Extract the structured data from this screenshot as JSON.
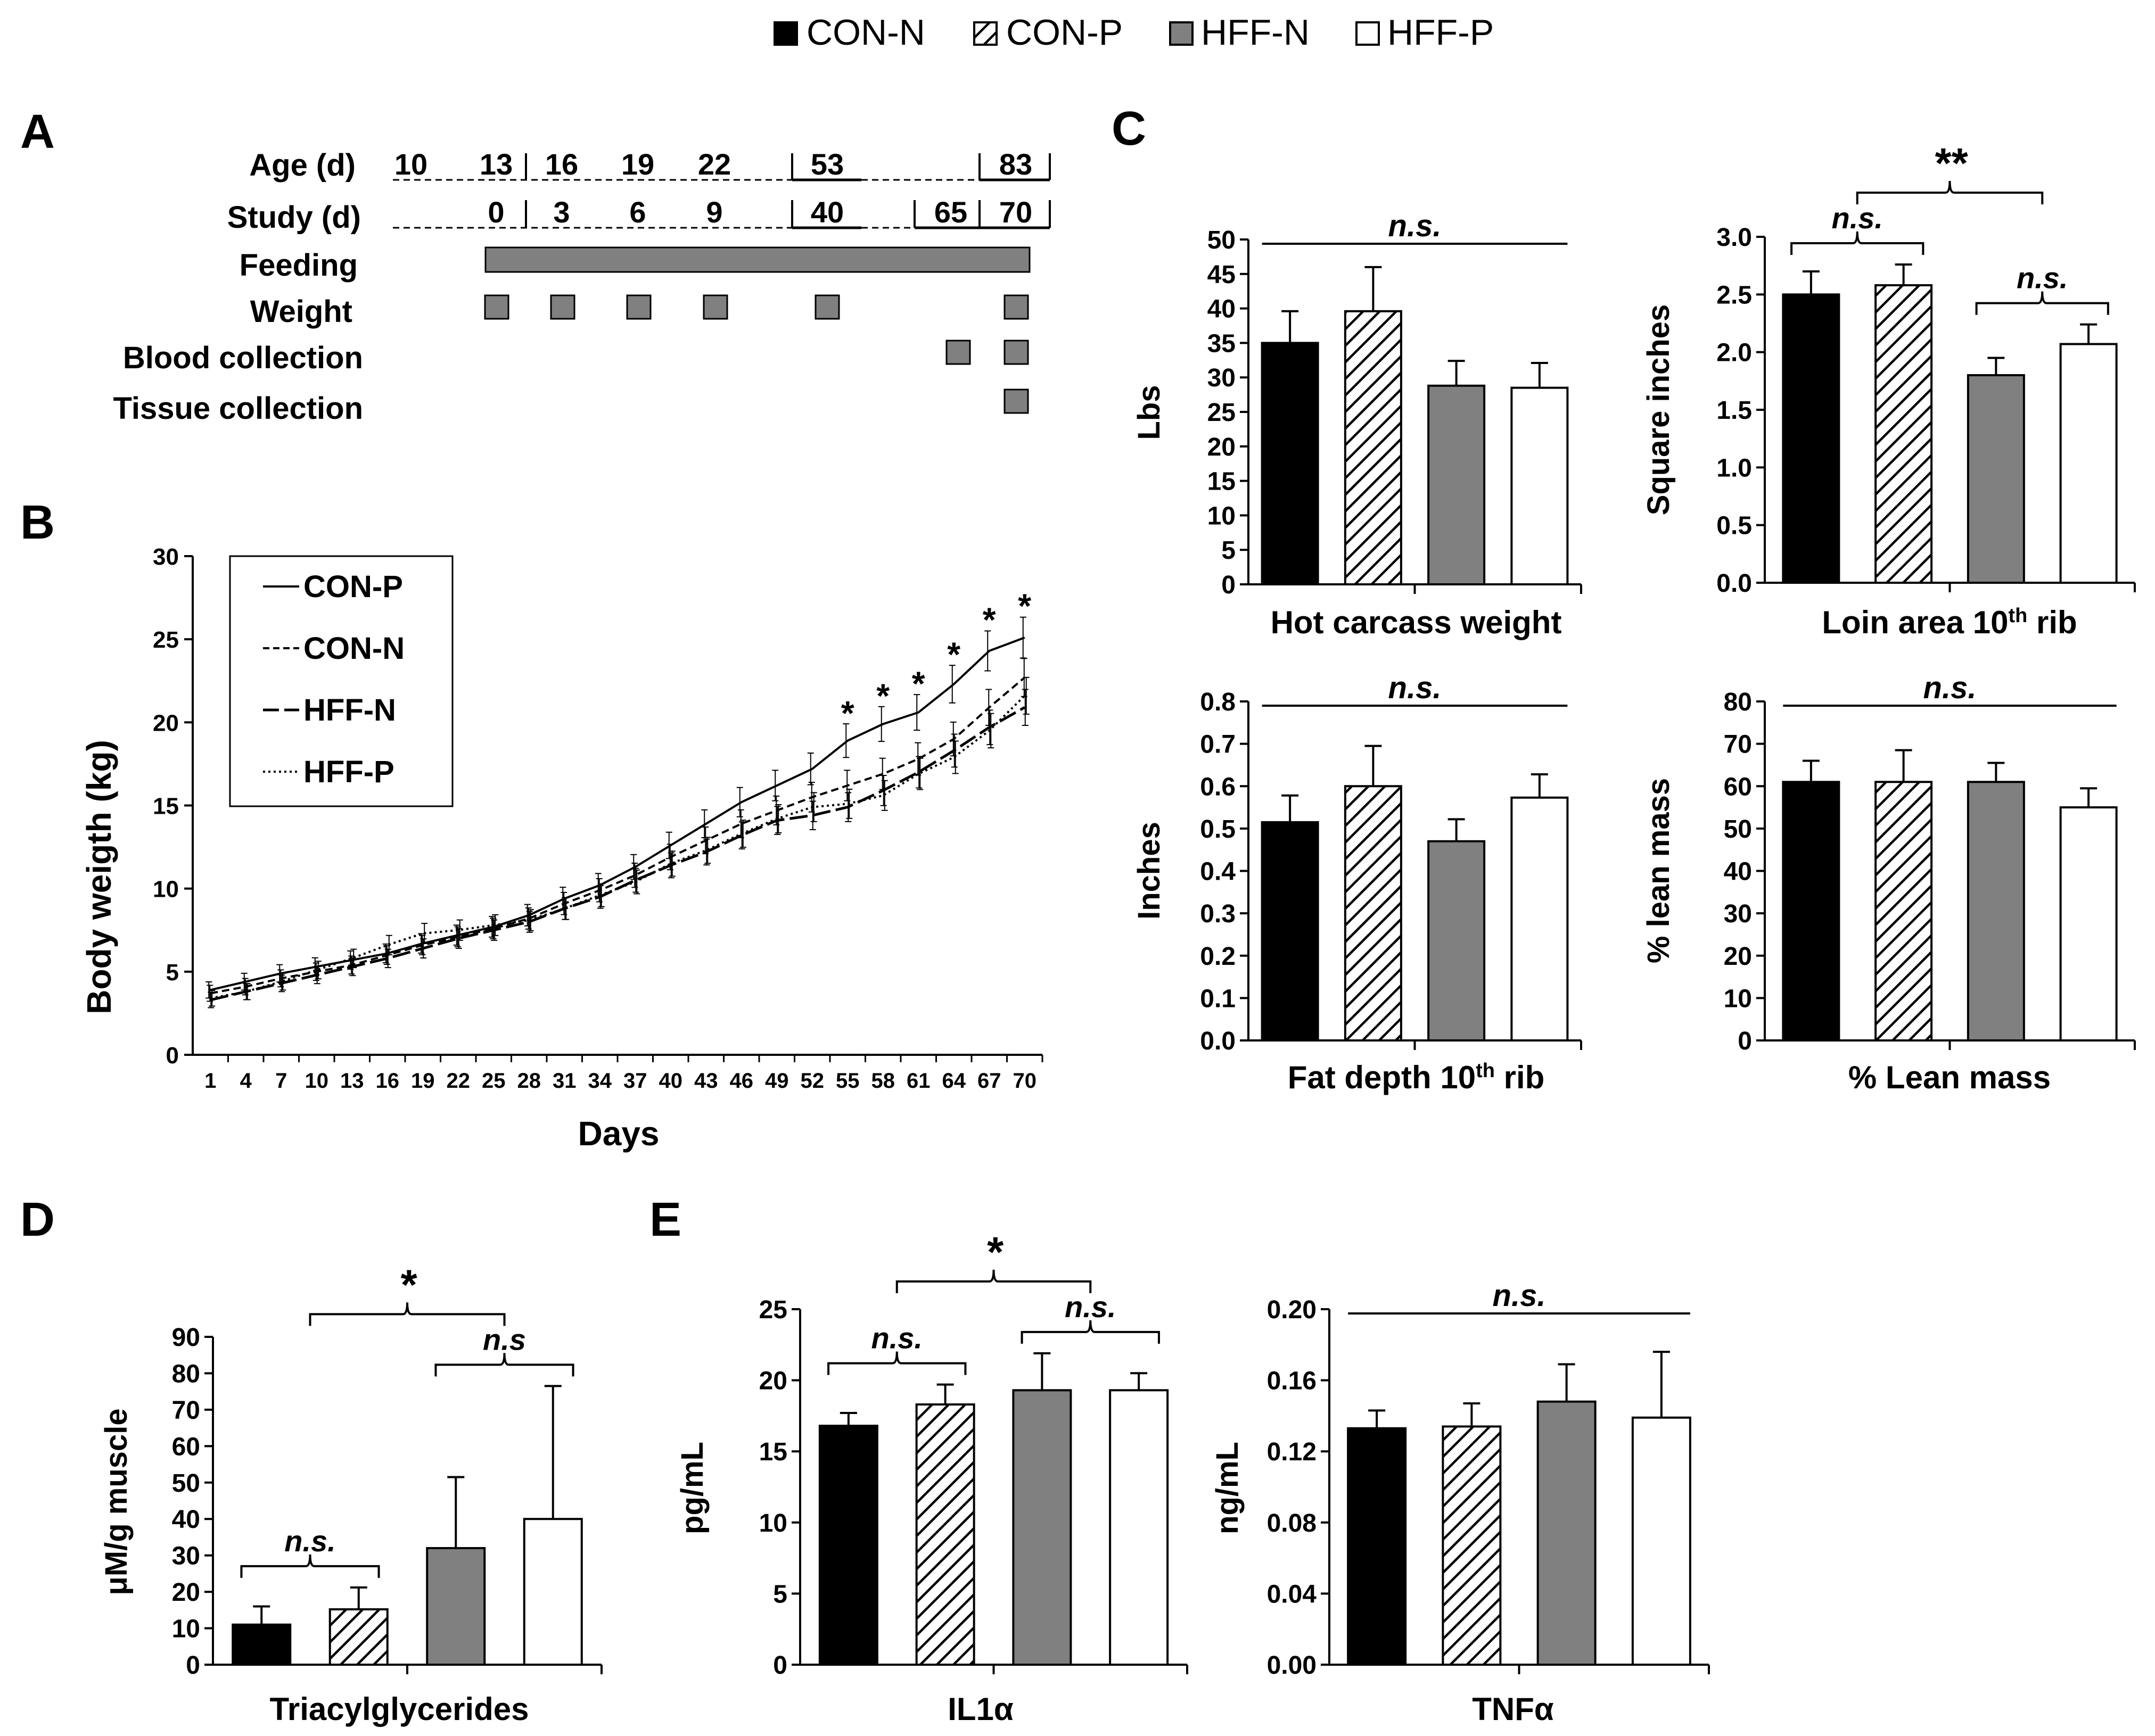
{
  "colors": {
    "con_n": "#000000",
    "con_p": "#ffffff",
    "hff_n": "#808080",
    "hff_p": "#ffffff",
    "axis": "#000000"
  },
  "legend": {
    "items": [
      "CON-N",
      "CON-P",
      "HFF-N",
      "HFF-P"
    ]
  },
  "panels": {
    "a": "A",
    "b": "B",
    "c": "C",
    "d": "D",
    "e": "E"
  },
  "timeline": {
    "age_label": "Age (d)",
    "study_label": "Study (d)",
    "ages": [
      "10",
      "13",
      "16",
      "19",
      "22",
      "53",
      "83"
    ],
    "study_days": [
      "0",
      "3",
      "6",
      "9",
      "40",
      "65",
      "70"
    ],
    "rows": [
      "Feeding",
      "Weight",
      "Blood collection",
      "Tissue collection"
    ]
  },
  "chart_data": [
    {
      "id": "B",
      "type": "line",
      "xlabel": "Days",
      "ylabel": "Body weigth (kg)",
      "ylim": [
        0,
        30
      ],
      "yticks": [
        0,
        5,
        10,
        15,
        20,
        25,
        30
      ],
      "x": [
        1,
        4,
        7,
        10,
        13,
        16,
        19,
        22,
        25,
        28,
        31,
        34,
        37,
        40,
        43,
        46,
        49,
        52,
        55,
        58,
        61,
        64,
        67,
        70
      ],
      "legend": [
        "CON-P",
        "CON-N",
        "HFF-N",
        "HFF-P"
      ],
      "series": [
        {
          "name": "CON-P",
          "style": "solid",
          "values": [
            3.9,
            4.4,
            4.9,
            5.3,
            5.7,
            6.1,
            6.7,
            7.2,
            7.7,
            8.4,
            9.4,
            10.2,
            11.3,
            12.6,
            13.9,
            15.2,
            16.2,
            17.2,
            18.9,
            19.9,
            20.6,
            22.3,
            24.3,
            25.1
          ]
        },
        {
          "name": "CON-N",
          "style": "dash",
          "values": [
            3.7,
            4.1,
            4.6,
            5.0,
            5.4,
            6.0,
            6.6,
            7.1,
            7.6,
            8.2,
            9.1,
            9.9,
            10.8,
            11.9,
            12.9,
            13.9,
            14.7,
            15.5,
            16.2,
            16.9,
            17.8,
            19.0,
            20.9,
            22.7
          ]
        },
        {
          "name": "HFF-N",
          "style": "longdash",
          "values": [
            3.3,
            3.8,
            4.3,
            4.8,
            5.3,
            5.8,
            6.4,
            7.0,
            7.5,
            8.0,
            8.8,
            9.5,
            10.5,
            11.4,
            12.2,
            13.2,
            14.1,
            14.4,
            14.9,
            15.9,
            17.0,
            18.3,
            19.7,
            20.9
          ]
        },
        {
          "name": "HFF-P",
          "style": "dot",
          "values": [
            3.4,
            3.8,
            4.4,
            5.1,
            5.8,
            6.6,
            7.3,
            7.5,
            7.8,
            8.1,
            8.8,
            9.6,
            10.4,
            11.5,
            12.3,
            13.3,
            14.2,
            14.9,
            15.1,
            15.6,
            16.9,
            17.9,
            19.5,
            21.6
          ]
        }
      ],
      "annotations": [
        {
          "x": 55,
          "text": "*"
        },
        {
          "x": 58,
          "text": "*"
        },
        {
          "x": 61,
          "text": "*"
        },
        {
          "x": 64,
          "text": "*"
        },
        {
          "x": 67,
          "text": "*"
        },
        {
          "x": 70,
          "text": "*"
        }
      ]
    },
    {
      "id": "C1",
      "type": "bar",
      "xlabel": "Hot carcass weight",
      "ylabel": "Lbs",
      "ylim": [
        0,
        50
      ],
      "yticks": [
        "0",
        "5",
        "10",
        "15",
        "20",
        "25",
        "30",
        "35",
        "40",
        "45",
        "50"
      ],
      "categories": [
        "CON-N",
        "CON-P",
        "HFF-N",
        "HFF-P"
      ],
      "values": [
        35,
        39.6,
        28.8,
        28.5
      ],
      "errors": [
        4.6,
        6.4,
        3.6,
        3.6
      ],
      "annotations": [
        {
          "text": "n.s.",
          "span": [
            0,
            3
          ]
        }
      ]
    },
    {
      "id": "C2",
      "type": "bar",
      "xlabel": "Loin area 10",
      "xlabel_sup": "th",
      "xlabel_end": " rib",
      "ylabel": "Square inches",
      "ylim": [
        0,
        3.0
      ],
      "yticks": [
        "0.0",
        "0.5",
        "1.0",
        "1.5",
        "2.0",
        "2.5",
        "3.0"
      ],
      "categories": [
        "CON-N",
        "CON-P",
        "HFF-N",
        "HFF-P"
      ],
      "values": [
        2.5,
        2.58,
        1.8,
        2.07
      ],
      "errors": [
        0.2,
        0.18,
        0.15,
        0.17
      ],
      "annotations": [
        {
          "text": "n.s.",
          "span": [
            0,
            1
          ]
        },
        {
          "text": "n.s.",
          "span": [
            2,
            3
          ]
        },
        {
          "text": "**",
          "span": [
            0.5,
            2.5
          ]
        }
      ]
    },
    {
      "id": "C3",
      "type": "bar",
      "xlabel": "Fat depth 10",
      "xlabel_sup": "th",
      "xlabel_end": " rib",
      "ylabel": "Inches",
      "ylim": [
        0,
        0.8
      ],
      "yticks": [
        "0.0",
        "0.1",
        "0.2",
        "0.3",
        "0.4",
        "0.5",
        "0.6",
        "0.7",
        "0.8"
      ],
      "categories": [
        "CON-N",
        "CON-P",
        "HFF-N",
        "HFF-P"
      ],
      "values": [
        0.515,
        0.6,
        0.47,
        0.573
      ],
      "errors": [
        0.063,
        0.095,
        0.052,
        0.055
      ],
      "annotations": [
        {
          "text": "n.s.",
          "span": [
            0,
            3
          ]
        }
      ]
    },
    {
      "id": "C4",
      "type": "bar",
      "xlabel": "% Lean mass",
      "ylabel": "% lean mass",
      "ylim": [
        0,
        80
      ],
      "yticks": [
        "0",
        "10",
        "20",
        "30",
        "40",
        "50",
        "60",
        "70",
        "80"
      ],
      "categories": [
        "CON-N",
        "CON-P",
        "HFF-N",
        "HFF-P"
      ],
      "values": [
        61,
        61,
        61,
        55
      ],
      "errors": [
        5,
        7.5,
        4.5,
        4.5
      ],
      "annotations": [
        {
          "text": "n.s.",
          "span": [
            0,
            3
          ]
        }
      ]
    },
    {
      "id": "D",
      "type": "bar",
      "xlabel": "Triacylglycerides",
      "ylabel": "μM/g muscle",
      "ylim": [
        0,
        90
      ],
      "yticks": [
        "0",
        "10",
        "20",
        "30",
        "40",
        "50",
        "60",
        "70",
        "80",
        "90"
      ],
      "categories": [
        "CON-N",
        "CON-P",
        "HFF-N",
        "HFF-P"
      ],
      "values": [
        11,
        15.2,
        32,
        40
      ],
      "errors": [
        5,
        6,
        19.5,
        36.5
      ],
      "annotations": [
        {
          "text": "n.s.",
          "span": [
            0,
            1
          ]
        },
        {
          "text": "n.s",
          "span": [
            2,
            3
          ]
        },
        {
          "text": "*",
          "span": [
            0.5,
            2.5
          ]
        }
      ]
    },
    {
      "id": "E1",
      "type": "bar",
      "xlabel": "IL1α",
      "ylabel": "pg/mL",
      "ylim": [
        0,
        25
      ],
      "yticks": [
        "0",
        "5",
        "10",
        "15",
        "20",
        "25"
      ],
      "categories": [
        "CON-N",
        "CON-P",
        "HFF-N",
        "HFF-P"
      ],
      "values": [
        16.8,
        18.3,
        19.3,
        19.3
      ],
      "errors": [
        0.9,
        1.4,
        2.6,
        1.2
      ],
      "annotations": [
        {
          "text": "n.s.",
          "span": [
            0,
            1
          ]
        },
        {
          "text": "n.s.",
          "span": [
            2,
            3
          ]
        },
        {
          "text": "*",
          "span": [
            0.5,
            2.5
          ]
        }
      ]
    },
    {
      "id": "E2",
      "type": "bar",
      "xlabel": "TNFα",
      "ylabel": "ng/mL",
      "ylim": [
        0,
        0.2
      ],
      "yticks": [
        "0.00",
        "0.04",
        "0.08",
        "0.12",
        "0.16",
        "0.20"
      ],
      "categories": [
        "CON-N",
        "CON-P",
        "HFF-N",
        "HFF-P"
      ],
      "values": [
        0.133,
        0.134,
        0.148,
        0.139
      ],
      "errors": [
        0.01,
        0.013,
        0.021,
        0.037
      ],
      "annotations": [
        {
          "text": "n.s.",
          "span": [
            0,
            3
          ]
        }
      ]
    }
  ]
}
